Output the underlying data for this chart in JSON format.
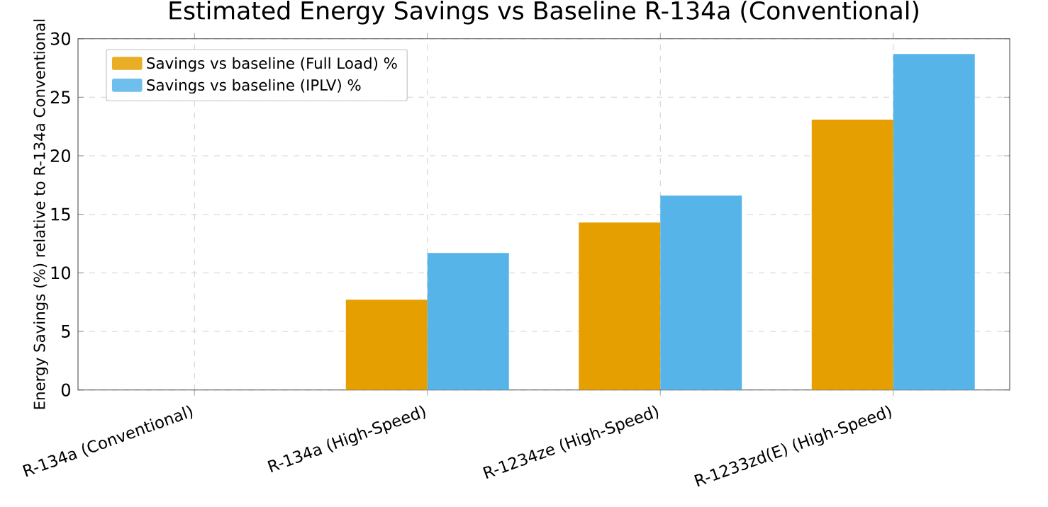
{
  "chart_data": {
    "type": "bar",
    "title": "Estimated Energy Savings vs Baseline R-134a (Conventional)",
    "ylabel": "Energy Savings (%) relative to R-134a Conventional",
    "categories": [
      "R-134a (Conventional)",
      "R-134a (High-Speed)",
      "R-1234ze (High-Speed)",
      "R-1233zd(E) (High-Speed)"
    ],
    "series": [
      {
        "name": "Savings vs baseline (Full Load) %",
        "color": "#e69f00",
        "values": [
          0,
          7.7,
          14.3,
          23.1
        ]
      },
      {
        "name": "Savings vs baseline (IPLV) %",
        "color": "#56b4e9",
        "values": [
          0,
          11.7,
          16.6,
          28.7
        ]
      }
    ],
    "ylim": [
      0,
      30
    ],
    "yticks": [
      0,
      5,
      10,
      15,
      20,
      25,
      30
    ],
    "grid": true,
    "legend": "top left"
  }
}
